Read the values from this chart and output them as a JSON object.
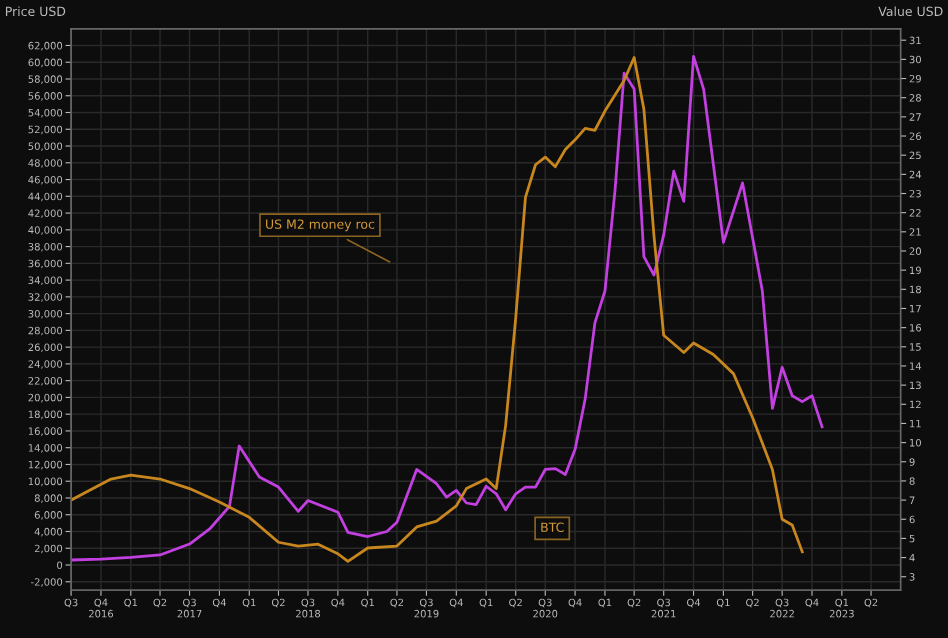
{
  "chart_data": {
    "type": "line",
    "ylabel": "Price USD",
    "y2label": "Value USD",
    "annotations": [
      "US M2 money roc",
      "BTC"
    ],
    "series": [
      {
        "color": "#c23fe0",
        "x": [
          "2016-07",
          "2016-10",
          "2017-01",
          "2017-04",
          "2017-07",
          "2017-09",
          "2017-11",
          "2017-12",
          "2018-02",
          "2018-04",
          "2018-06",
          "2018-07",
          "2018-10",
          "2018-11",
          "2019-01",
          "2019-03",
          "2019-04",
          "2019-06",
          "2019-08",
          "2019-09",
          "2019-10",
          "2019-11",
          "2019-12",
          "2020-01",
          "2020-02",
          "2020-03",
          "2020-04",
          "2020-05",
          "2020-06",
          "2020-07",
          "2020-08",
          "2020-09",
          "2020-10",
          "2020-11",
          "2020-12",
          "2021-01",
          "2021-02",
          "2021-03",
          "2021-04",
          "2021-05",
          "2021-06",
          "2021-07",
          "2021-08",
          "2021-09",
          "2021-10",
          "2021-11",
          "2022-01",
          "2022-03",
          "2022-05",
          "2022-06",
          "2022-07",
          "2022-08",
          "2022-09",
          "2022-10",
          "2022-11"
        ],
        "values": [
          600,
          700,
          900,
          1200,
          2500,
          4300,
          7000,
          14200,
          10500,
          9300,
          6400,
          7700,
          6300,
          3900,
          3400,
          4000,
          5100,
          11400,
          9700,
          8100,
          8900,
          7400,
          7200,
          9400,
          8500,
          6600,
          8500,
          9300,
          9300,
          11400,
          11500,
          10800,
          13800,
          19800,
          28900,
          32700,
          44700,
          58700,
          56800,
          36800,
          34600,
          39400,
          47000,
          43400,
          60700,
          56800,
          38500,
          45600,
          32700,
          18700,
          23600,
          20200,
          19500,
          20200,
          16500
        ]
      },
      {
        "axis": "y2",
        "color": "#c8871e",
        "x": [
          "2016-07",
          "2016-11",
          "2017-01",
          "2017-04",
          "2017-07",
          "2017-10",
          "2018-01",
          "2018-04",
          "2018-06",
          "2018-08",
          "2018-10",
          "2018-11",
          "2019-01",
          "2019-04",
          "2019-06",
          "2019-08",
          "2019-10",
          "2019-11",
          "2020-01",
          "2020-02",
          "2020-03",
          "2020-04",
          "2020-05",
          "2020-06",
          "2020-07",
          "2020-08",
          "2020-09",
          "2020-10",
          "2020-11",
          "2020-12",
          "2021-01",
          "2021-03",
          "2021-04",
          "2021-05",
          "2021-06",
          "2021-07",
          "2021-09",
          "2021-10",
          "2021-12",
          "2022-02",
          "2022-04",
          "2022-06",
          "2022-07",
          "2022-08",
          "2022-09"
        ],
        "values": [
          7.0,
          8.1,
          8.3,
          8.1,
          7.6,
          6.9,
          6.1,
          4.8,
          4.6,
          4.7,
          4.2,
          3.8,
          4.5,
          4.6,
          5.6,
          5.9,
          6.7,
          7.6,
          8.1,
          7.6,
          10.9,
          16.5,
          22.8,
          24.5,
          24.9,
          24.4,
          25.3,
          25.8,
          26.4,
          26.3,
          27.3,
          28.9,
          30.1,
          27.4,
          20.8,
          15.6,
          14.7,
          15.2,
          14.6,
          13.6,
          11.3,
          8.6,
          6.0,
          5.7,
          4.3
        ]
      }
    ],
    "xlim": [
      "2016-07",
      "2023-07"
    ],
    "xticks": [
      {
        "value": "2016-07",
        "label": "Q3"
      },
      {
        "value": "2016-10",
        "label": "Q4\n2016"
      },
      {
        "value": "2017-01",
        "label": "Q1"
      },
      {
        "value": "2017-04",
        "label": "Q2"
      },
      {
        "value": "2017-07",
        "label": "Q3\n2017"
      },
      {
        "value": "2017-10",
        "label": "Q4"
      },
      {
        "value": "2018-01",
        "label": "Q1"
      },
      {
        "value": "2018-04",
        "label": "Q2"
      },
      {
        "value": "2018-07",
        "label": "Q3\n2018"
      },
      {
        "value": "2018-10",
        "label": "Q4"
      },
      {
        "value": "2019-01",
        "label": "Q1"
      },
      {
        "value": "2019-04",
        "label": "Q2"
      },
      {
        "value": "2019-07",
        "label": "Q3\n2019"
      },
      {
        "value": "2019-10",
        "label": "Q4"
      },
      {
        "value": "2020-01",
        "label": "Q1"
      },
      {
        "value": "2020-04",
        "label": "Q2"
      },
      {
        "value": "2020-07",
        "label": "Q3\n2020"
      },
      {
        "value": "2020-10",
        "label": "Q4"
      },
      {
        "value": "2021-01",
        "label": "Q1"
      },
      {
        "value": "2021-04",
        "label": "Q2"
      },
      {
        "value": "2021-07",
        "label": "Q3\n2021"
      },
      {
        "value": "2021-10",
        "label": "Q4"
      },
      {
        "value": "2022-01",
        "label": "Q1"
      },
      {
        "value": "2022-04",
        "label": "Q2"
      },
      {
        "value": "2022-07",
        "label": "Q3\n2022"
      },
      {
        "value": "2022-10",
        "label": "Q4"
      },
      {
        "value": "2023-01",
        "label": "Q1\n2023"
      },
      {
        "value": "2023-04",
        "label": "Q2"
      }
    ],
    "ylim": [
      -3000,
      64000
    ],
    "yticks": [
      {
        "value": -2000,
        "label": "-2,000"
      },
      0,
      {
        "value": 2000,
        "label": "2,000"
      },
      {
        "value": 4000,
        "label": "4,000"
      },
      {
        "value": 6000,
        "label": "6,000"
      },
      {
        "value": 8000,
        "label": "8,000"
      },
      {
        "value": 10000,
        "label": "10,000"
      },
      {
        "value": 12000,
        "label": "12,000"
      },
      {
        "value": 14000,
        "label": "14,000"
      },
      {
        "value": 16000,
        "label": "16,000"
      },
      {
        "value": 18000,
        "label": "18,000"
      },
      {
        "value": 20000,
        "label": "20,000"
      },
      {
        "value": 22000,
        "label": "22,000"
      },
      {
        "value": 24000,
        "label": "24,000"
      },
      {
        "value": 26000,
        "label": "26,000"
      },
      {
        "value": 28000,
        "label": "28,000"
      },
      {
        "value": 30000,
        "label": "30,000"
      },
      {
        "value": 32000,
        "label": "32,000"
      },
      {
        "value": 34000,
        "label": "34,000"
      },
      {
        "value": 36000,
        "label": "36,000"
      },
      {
        "value": 38000,
        "label": "38,000"
      },
      {
        "value": 40000,
        "label": "40,000"
      },
      {
        "value": 42000,
        "label": "42,000"
      },
      {
        "value": 44000,
        "label": "44,000"
      },
      {
        "value": 46000,
        "label": "46,000"
      },
      {
        "value": 48000,
        "label": "48,000"
      },
      {
        "value": 50000,
        "label": "50,000"
      },
      {
        "value": 52000,
        "label": "52,000"
      },
      {
        "value": 54000,
        "label": "54,000"
      },
      {
        "value": 56000,
        "label": "56,000"
      },
      {
        "value": 58000,
        "label": "58,000"
      },
      {
        "value": 60000,
        "label": "60,000"
      },
      {
        "value": 62000,
        "label": "62,000"
      }
    ],
    "y2lim": [
      2.3,
      31.6
    ],
    "y2ticks": [
      3,
      4,
      5,
      6,
      7,
      8,
      9,
      10,
      11,
      12,
      13,
      14,
      15,
      16,
      17,
      18,
      19,
      20,
      21,
      22,
      23,
      24,
      25,
      26,
      27,
      28,
      29,
      30,
      31
    ],
    "grid": true,
    "marker": "none",
    "line_style": "solid"
  }
}
